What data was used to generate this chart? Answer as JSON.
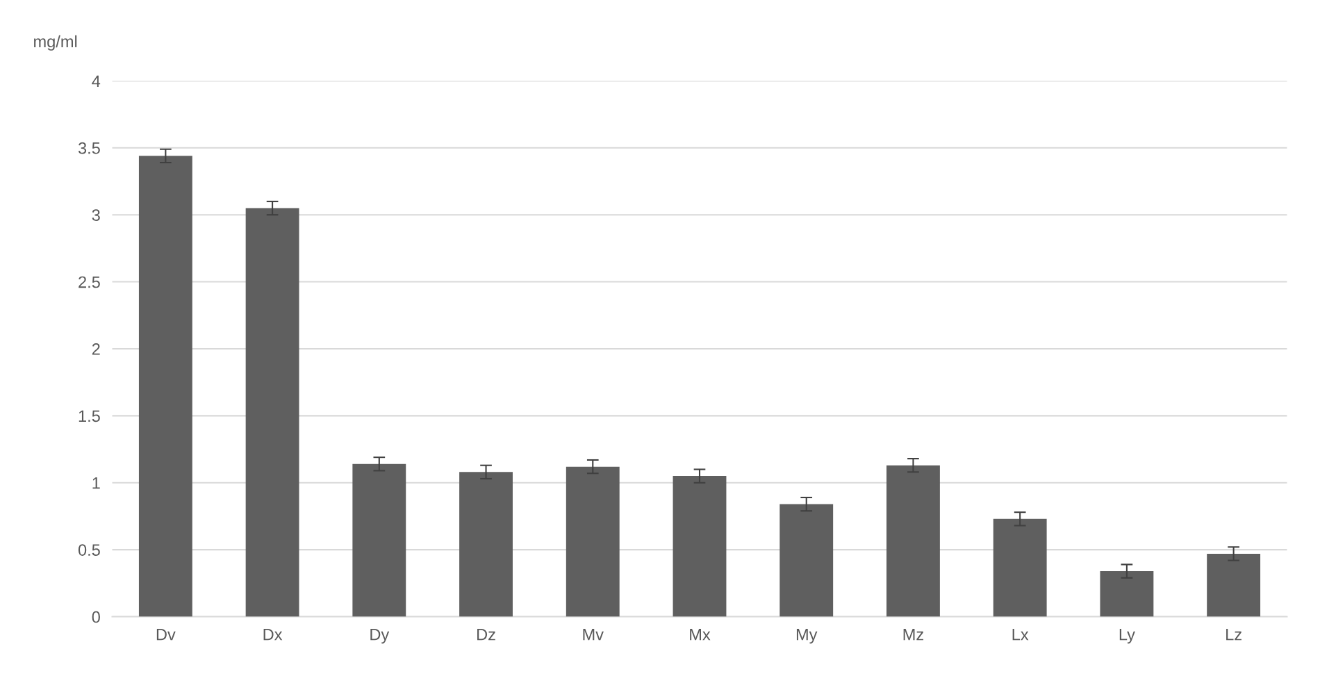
{
  "chart_data": {
    "type": "bar",
    "ylabel": "mg/ml",
    "categories": [
      "Dv",
      "Dx",
      "Dy",
      "Dz",
      "Mv",
      "Mx",
      "My",
      "Mz",
      "Lx",
      "Ly",
      "Lz"
    ],
    "values": [
      3.44,
      3.05,
      1.14,
      1.08,
      1.12,
      1.05,
      0.84,
      1.13,
      0.73,
      0.34,
      0.47
    ],
    "errors": [
      0.05,
      0.05,
      0.05,
      0.05,
      0.05,
      0.05,
      0.05,
      0.05,
      0.05,
      0.05,
      0.05
    ],
    "color": "#5f5f5f",
    "ylim": [
      0,
      4
    ],
    "yticks": [
      0,
      0.5,
      1,
      1.5,
      2,
      2.5,
      3,
      3.5,
      4
    ],
    "grid": "y",
    "legend": false
  }
}
